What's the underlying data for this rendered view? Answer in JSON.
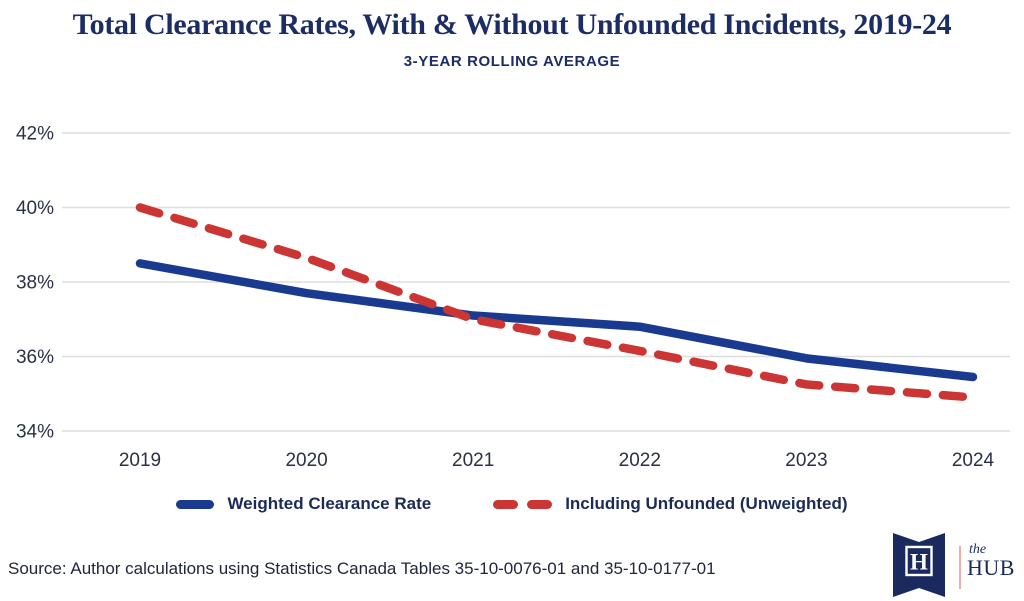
{
  "header": {
    "title": "Total Clearance Rates, With & Without Unfounded Incidents, 2019-24",
    "subtitle": "3-YEAR ROLLING AVERAGE"
  },
  "chart_data": {
    "type": "line",
    "x_labels": [
      "2019",
      "2020",
      "2021",
      "2022",
      "2023",
      "2024"
    ],
    "y_tick_labels": [
      "42%",
      "40%",
      "38%",
      "36%",
      "34%"
    ],
    "y_tick_values": [
      42,
      40,
      38,
      36,
      34
    ],
    "ylim": [
      34,
      42
    ],
    "grid": true,
    "legend_position": "bottom",
    "series": [
      {
        "name": "Weighted Clearance Rate",
        "style": "solid",
        "color": "#1A3A8F",
        "values": [
          38.5,
          37.7,
          37.1,
          36.8,
          35.95,
          35.45
        ]
      },
      {
        "name": "Including Unfounded (Unweighted)",
        "style": "dashed",
        "color": "#CB3533",
        "values": [
          40.0,
          38.65,
          37.0,
          36.15,
          35.25,
          34.9
        ]
      }
    ],
    "gridline_color": "#DEDEDE",
    "tick_label_color": "#2B3145"
  },
  "footer": {
    "source": "Source: Author calculations using Statistics Canada Tables 35-10-0076-01 and 35-10-0177-01"
  },
  "logo": {
    "monogram": "H",
    "word_top": "the",
    "word_bottom": "HUB",
    "navy": "#1B2A5E"
  }
}
